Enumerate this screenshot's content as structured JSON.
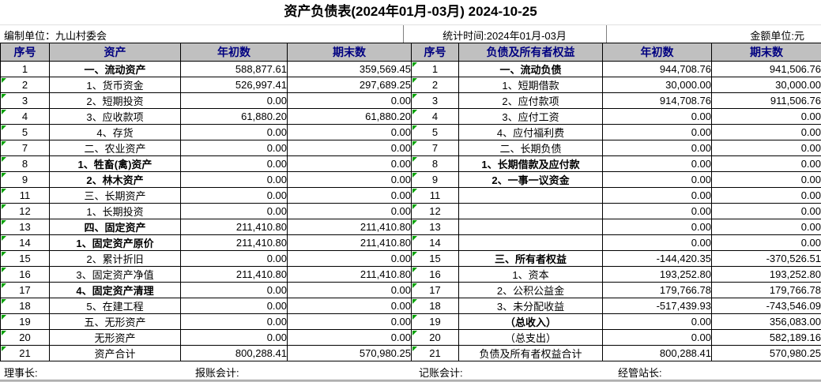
{
  "title": "资产负债表(2024年01月-03月) 2024-10-25",
  "meta": {
    "unit_label": "编制单位：九山村委会",
    "period_label": "统计时间:2024年01月-03月",
    "currency_label": "金额单位:元"
  },
  "colors": {
    "header_bg": "#c0c0c0",
    "header_text": "#000080",
    "comment_marker_green": "#00a000",
    "bottom_strip": "#c0c0c0"
  },
  "table": {
    "headers": [
      "序号",
      "资产",
      "年初数",
      "期末数",
      "序号",
      "负债及所有者权益",
      "年初数",
      "期末数"
    ],
    "rows": [
      {
        "l": {
          "no": "1",
          "label": "一、流动资产",
          "bold": true,
          "begin": "588,877.61",
          "end": "359,569.45",
          "marker": false
        },
        "r": {
          "no": "1",
          "label": "一、流动负债",
          "bold": true,
          "begin": "944,708.76",
          "end": "941,506.76",
          "marker": true
        }
      },
      {
        "l": {
          "no": "2",
          "label": "1、货币资金",
          "bold": false,
          "begin": "526,997.41",
          "end": "297,689.25",
          "marker": true
        },
        "r": {
          "no": "2",
          "label": "1、短期借款",
          "bold": false,
          "begin": "30,000.00",
          "end": "30,000.00",
          "marker": true
        }
      },
      {
        "l": {
          "no": "3",
          "label": "2、短期投资",
          "bold": false,
          "begin": "0.00",
          "end": "0.00",
          "marker": true
        },
        "r": {
          "no": "3",
          "label": "2、应付款项",
          "bold": false,
          "begin": "914,708.76",
          "end": "911,506.76",
          "marker": true
        }
      },
      {
        "l": {
          "no": "4",
          "label": "3、应收款项",
          "bold": false,
          "begin": "61,880.20",
          "end": "61,880.20",
          "marker": true
        },
        "r": {
          "no": "4",
          "label": "3、应付工资",
          "bold": false,
          "begin": "0.00",
          "end": "0.00",
          "marker": true
        }
      },
      {
        "l": {
          "no": "5",
          "label": "4、存货",
          "bold": false,
          "begin": "0.00",
          "end": "0.00",
          "marker": true
        },
        "r": {
          "no": "5",
          "label": "4、应付福利费",
          "bold": false,
          "begin": "0.00",
          "end": "0.00",
          "marker": true
        }
      },
      {
        "l": {
          "no": "7",
          "label": "二、农业资产",
          "bold": false,
          "begin": "0.00",
          "end": "0.00",
          "marker": true
        },
        "r": {
          "no": "7",
          "label": "二、长期负债",
          "bold": false,
          "begin": "0.00",
          "end": "0.00",
          "marker": true
        }
      },
      {
        "l": {
          "no": "8",
          "label": "1、牲畜(禽)资产",
          "bold": true,
          "begin": "0.00",
          "end": "0.00",
          "marker": true
        },
        "r": {
          "no": "8",
          "label": "1、长期借款及应付款",
          "bold": true,
          "begin": "0.00",
          "end": "0.00",
          "marker": true
        }
      },
      {
        "l": {
          "no": "9",
          "label": "2、林木资产",
          "bold": true,
          "begin": "0.00",
          "end": "0.00",
          "marker": true
        },
        "r": {
          "no": "9",
          "label": "2、一事一议资金",
          "bold": true,
          "begin": "0.00",
          "end": "0.00",
          "marker": true
        }
      },
      {
        "l": {
          "no": "11",
          "label": "三、长期资产",
          "bold": false,
          "begin": "0.00",
          "end": "0.00",
          "marker": true
        },
        "r": {
          "no": "11",
          "label": "",
          "bold": false,
          "begin": "0.00",
          "end": "0.00",
          "marker": true
        }
      },
      {
        "l": {
          "no": "12",
          "label": "1、长期投资",
          "bold": false,
          "begin": "0.00",
          "end": "0.00",
          "marker": true
        },
        "r": {
          "no": "12",
          "label": "",
          "bold": false,
          "begin": "0.00",
          "end": "0.00",
          "marker": true
        }
      },
      {
        "l": {
          "no": "13",
          "label": "四、固定资产",
          "bold": true,
          "begin": "211,410.80",
          "end": "211,410.80",
          "marker": true
        },
        "r": {
          "no": "13",
          "label": "",
          "bold": false,
          "begin": "0.00",
          "end": "0.00",
          "marker": true
        }
      },
      {
        "l": {
          "no": "14",
          "label": "1、固定资产原价",
          "bold": true,
          "begin": "211,410.80",
          "end": "211,410.80",
          "marker": true
        },
        "r": {
          "no": "14",
          "label": "",
          "bold": false,
          "begin": "0.00",
          "end": "0.00",
          "marker": true
        }
      },
      {
        "l": {
          "no": "15",
          "label": "2、累计折旧",
          "bold": false,
          "begin": "0.00",
          "end": "0.00",
          "marker": true
        },
        "r": {
          "no": "15",
          "label": "三、所有者权益",
          "bold": true,
          "begin": "-144,420.35",
          "end": "-370,526.51",
          "marker": true
        }
      },
      {
        "l": {
          "no": "16",
          "label": "3、固定资产净值",
          "bold": false,
          "begin": "211,410.80",
          "end": "211,410.80",
          "marker": true
        },
        "r": {
          "no": "16",
          "label": "1、资本",
          "bold": false,
          "begin": "193,252.80",
          "end": "193,252.80",
          "marker": true
        }
      },
      {
        "l": {
          "no": "17",
          "label": "4、固定资产清理",
          "bold": true,
          "begin": "0.00",
          "end": "0.00",
          "marker": true
        },
        "r": {
          "no": "17",
          "label": "2、公积公益金",
          "bold": false,
          "begin": "179,766.78",
          "end": "179,766.78",
          "marker": true
        }
      },
      {
        "l": {
          "no": "18",
          "label": "5、在建工程",
          "bold": false,
          "begin": "0.00",
          "end": "0.00",
          "marker": true
        },
        "r": {
          "no": "18",
          "label": "3、未分配收益",
          "bold": false,
          "begin": "-517,439.93",
          "end": "-743,546.09",
          "marker": true
        }
      },
      {
        "l": {
          "no": "19",
          "label": "五、无形资产",
          "bold": false,
          "begin": "0.00",
          "end": "0.00",
          "marker": true
        },
        "r": {
          "no": "19",
          "label": "（总收入）",
          "bold": true,
          "begin": "0.00",
          "end": "356,083.00",
          "marker": true
        }
      },
      {
        "l": {
          "no": "20",
          "label": "无形资产",
          "bold": false,
          "begin": "0.00",
          "end": "0.00",
          "marker": true
        },
        "r": {
          "no": "20",
          "label": "（总支出）",
          "bold": false,
          "begin": "0.00",
          "end": "582,189.16",
          "marker": true
        }
      },
      {
        "l": {
          "no": "21",
          "label": "资产合计",
          "bold": false,
          "begin": "800,288.41",
          "end": "570,980.25",
          "marker": true
        },
        "r": {
          "no": "21",
          "label": "负债及所有者权益合计",
          "bold": false,
          "begin": "800,288.41",
          "end": "570,980.25",
          "marker": true
        }
      }
    ]
  },
  "footer": {
    "items": [
      "理事长:",
      "报账会计:",
      "记账会计:",
      "经管站长:"
    ]
  }
}
